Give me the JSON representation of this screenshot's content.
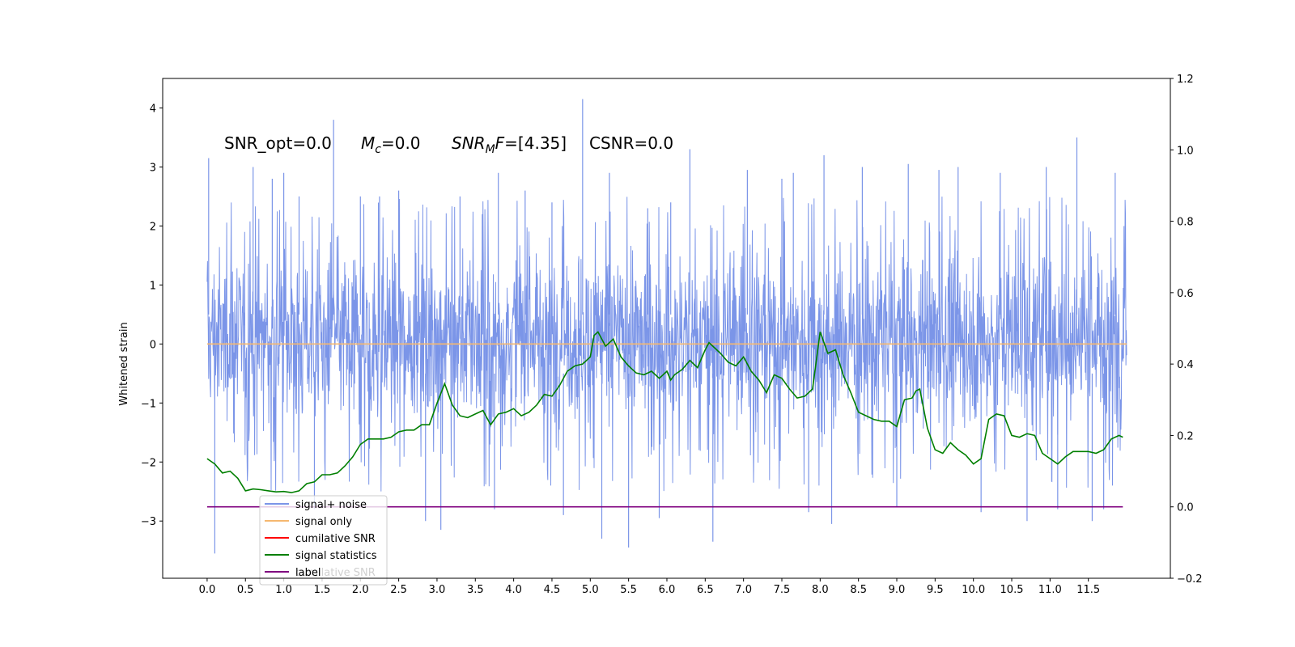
{
  "chart_data": {
    "type": "line",
    "title": "",
    "xlabel": "",
    "ylabel": "Whitened strain",
    "xlim": [
      -0.58,
      12.57
    ],
    "ylim": [
      -3.97,
      4.5
    ],
    "y2lim": [
      -0.2,
      1.2
    ],
    "grid": false,
    "legend_position": "lower-left",
    "x_ticks": [
      0.0,
      0.5,
      1.0,
      1.5,
      2.0,
      2.5,
      3.0,
      3.5,
      4.0,
      4.5,
      5.0,
      5.5,
      6.0,
      6.5,
      7.0,
      7.5,
      8.0,
      8.5,
      9.0,
      9.5,
      10.0,
      10.5,
      11.0,
      11.5
    ],
    "x_tick_labels": [
      "0.0",
      "0.5",
      "1.0",
      "1.5",
      "2.0",
      "2.5",
      "3.0",
      "3.5",
      "4.0",
      "4.5",
      "5.0",
      "5.5",
      "6.0",
      "6.5",
      "7.0",
      "7.5",
      "8.0",
      "8.5",
      "9.0",
      "9.5",
      "10.0",
      "10.5",
      "11.0",
      "11.5"
    ],
    "y_ticks": [
      -3,
      -2,
      -1,
      0,
      1,
      2,
      3,
      4
    ],
    "y_tick_labels": [
      "−3",
      "−2",
      "−1",
      "0",
      "1",
      "2",
      "3",
      "4"
    ],
    "y2_ticks": [
      -0.2,
      0.0,
      0.2,
      0.4,
      0.6,
      0.8,
      1.0,
      1.2
    ],
    "y2_tick_labels": [
      "−0.2",
      "0.0",
      "0.2",
      "0.4",
      "0.6",
      "0.8",
      "1.0",
      "1.2"
    ],
    "annotations": {
      "snr_opt": "SNR_opt=0.0",
      "mc_symbol": "M",
      "mc_sub": "c",
      "mc_value": "=0.0",
      "snrmf_snr": "SNR",
      "snrmf_sub": "M",
      "snrmf_f": "F",
      "snrmf_value": "=[4.35]",
      "csnr": "CSNR=0.0"
    },
    "series": [
      {
        "name": "signal+ noise",
        "color": "#7b95e8",
        "axis": "left",
        "kind": "dense-noise",
        "x_range": [
          0.0,
          12.0
        ],
        "typical_range": [
          -1.7,
          1.9
        ],
        "peaks": [
          {
            "x": 0.02,
            "y": 3.15
          },
          {
            "x": 0.1,
            "y": -3.55
          },
          {
            "x": 0.6,
            "y": 3.0
          },
          {
            "x": 0.85,
            "y": 2.8
          },
          {
            "x": 1.0,
            "y": 2.9
          },
          {
            "x": 1.2,
            "y": 2.5
          },
          {
            "x": 1.65,
            "y": 3.8
          },
          {
            "x": 1.4,
            "y": -2.8
          },
          {
            "x": 2.0,
            "y": 2.5
          },
          {
            "x": 2.25,
            "y": 2.5
          },
          {
            "x": 2.5,
            "y": 2.6
          },
          {
            "x": 2.85,
            "y": -3.0
          },
          {
            "x": 3.05,
            "y": -3.15
          },
          {
            "x": 3.3,
            "y": 2.5
          },
          {
            "x": 3.75,
            "y": -2.8
          },
          {
            "x": 3.8,
            "y": 2.9
          },
          {
            "x": 4.15,
            "y": 2.6
          },
          {
            "x": 4.5,
            "y": 2.4
          },
          {
            "x": 4.65,
            "y": -2.9
          },
          {
            "x": 4.9,
            "y": 4.15
          },
          {
            "x": 5.15,
            "y": -3.3
          },
          {
            "x": 5.25,
            "y": 2.9
          },
          {
            "x": 5.5,
            "y": -3.45
          },
          {
            "x": 5.75,
            "y": 2.3
          },
          {
            "x": 5.9,
            "y": -2.95
          },
          {
            "x": 6.05,
            "y": 2.4
          },
          {
            "x": 6.3,
            "y": 3.3
          },
          {
            "x": 6.6,
            "y": -3.35
          },
          {
            "x": 7.05,
            "y": 2.95
          },
          {
            "x": 7.5,
            "y": 2.8
          },
          {
            "x": 7.65,
            "y": 2.9
          },
          {
            "x": 7.85,
            "y": -2.85
          },
          {
            "x": 8.05,
            "y": 3.2
          },
          {
            "x": 8.15,
            "y": -3.05
          },
          {
            "x": 8.55,
            "y": 3.0
          },
          {
            "x": 9.0,
            "y": -2.75
          },
          {
            "x": 9.15,
            "y": 3.05
          },
          {
            "x": 9.55,
            "y": 2.95
          },
          {
            "x": 9.8,
            "y": 3.0
          },
          {
            "x": 10.1,
            "y": -2.85
          },
          {
            "x": 10.35,
            "y": 2.9
          },
          {
            "x": 10.7,
            "y": -3.0
          },
          {
            "x": 10.95,
            "y": 3.0
          },
          {
            "x": 11.1,
            "y": -2.8
          },
          {
            "x": 11.35,
            "y": 3.5
          },
          {
            "x": 11.55,
            "y": -3.0
          },
          {
            "x": 11.7,
            "y": -2.8
          },
          {
            "x": 11.85,
            "y": 2.9
          }
        ]
      },
      {
        "name": "signal only",
        "color": "#f5b870",
        "axis": "left",
        "x": [
          0.0,
          12.0
        ],
        "y": [
          0.0,
          0.0
        ]
      },
      {
        "name": "cumilative SNR",
        "color": "#ff0000",
        "axis": "right",
        "x": [],
        "y": []
      },
      {
        "name": "signal statistics",
        "color": "#007f00",
        "axis": "right",
        "x": [
          0.0,
          0.1,
          0.2,
          0.3,
          0.4,
          0.5,
          0.6,
          0.7,
          0.8,
          0.9,
          1.0,
          1.1,
          1.2,
          1.3,
          1.4,
          1.5,
          1.6,
          1.7,
          1.8,
          1.9,
          2.0,
          2.1,
          2.2,
          2.3,
          2.4,
          2.5,
          2.6,
          2.7,
          2.8,
          2.9,
          3.0,
          3.1,
          3.2,
          3.3,
          3.4,
          3.5,
          3.6,
          3.7,
          3.8,
          3.9,
          4.0,
          4.1,
          4.2,
          4.3,
          4.4,
          4.5,
          4.6,
          4.7,
          4.8,
          4.9,
          5.0,
          5.05,
          5.1,
          5.2,
          5.25,
          5.3,
          5.4,
          5.5,
          5.6,
          5.7,
          5.8,
          5.9,
          6.0,
          6.05,
          6.1,
          6.2,
          6.3,
          6.4,
          6.5,
          6.55,
          6.6,
          6.7,
          6.8,
          6.9,
          7.0,
          7.1,
          7.2,
          7.3,
          7.4,
          7.5,
          7.6,
          7.7,
          7.8,
          7.9,
          8.0,
          8.1,
          8.2,
          8.3,
          8.4,
          8.5,
          8.6,
          8.7,
          8.8,
          8.9,
          9.0,
          9.1,
          9.2,
          9.25,
          9.3,
          9.4,
          9.5,
          9.6,
          9.7,
          9.8,
          9.9,
          10.0,
          10.1,
          10.2,
          10.3,
          10.4,
          10.5,
          10.6,
          10.7,
          10.8,
          10.9,
          11.0,
          11.1,
          11.2,
          11.3,
          11.4,
          11.5,
          11.6,
          11.7,
          11.8,
          11.9,
          11.95
        ],
        "y": [
          0.135,
          0.12,
          0.095,
          0.1,
          0.08,
          0.045,
          0.05,
          0.048,
          0.045,
          0.042,
          0.043,
          0.04,
          0.045,
          0.065,
          0.07,
          0.09,
          0.09,
          0.095,
          0.115,
          0.14,
          0.175,
          0.19,
          0.19,
          0.19,
          0.195,
          0.21,
          0.215,
          0.215,
          0.23,
          0.23,
          0.29,
          0.345,
          0.285,
          0.255,
          0.25,
          0.26,
          0.27,
          0.23,
          0.26,
          0.265,
          0.275,
          0.255,
          0.265,
          0.285,
          0.315,
          0.31,
          0.34,
          0.38,
          0.395,
          0.4,
          0.42,
          0.48,
          0.49,
          0.45,
          0.46,
          0.47,
          0.42,
          0.395,
          0.375,
          0.37,
          0.38,
          0.36,
          0.38,
          0.355,
          0.37,
          0.385,
          0.41,
          0.39,
          0.44,
          0.46,
          0.45,
          0.43,
          0.405,
          0.395,
          0.42,
          0.38,
          0.355,
          0.32,
          0.37,
          0.36,
          0.33,
          0.305,
          0.31,
          0.33,
          0.49,
          0.43,
          0.44,
          0.37,
          0.32,
          0.265,
          0.255,
          0.245,
          0.24,
          0.24,
          0.225,
          0.3,
          0.305,
          0.325,
          0.33,
          0.22,
          0.16,
          0.15,
          0.18,
          0.16,
          0.145,
          0.12,
          0.135,
          0.245,
          0.26,
          0.255,
          0.2,
          0.195,
          0.205,
          0.2,
          0.15,
          0.135,
          0.12,
          0.14,
          0.155,
          0.155,
          0.155,
          0.15,
          0.16,
          0.19,
          0.2,
          0.195
        ]
      },
      {
        "name": "label",
        "color": "#7f007f",
        "axis": "right",
        "x": [
          0.0,
          11.95
        ],
        "y": [
          0.0,
          0.0
        ]
      }
    ],
    "legend": [
      {
        "label": "signal+ noise",
        "color": "#7b95e8"
      },
      {
        "label": "signal only",
        "color": "#f5b870"
      },
      {
        "label": "cumilative SNR",
        "color": "#ff0000"
      },
      {
        "label": "signal statistics",
        "color": "#007f00"
      },
      {
        "label": "label",
        "color": "#7f007f"
      }
    ],
    "hidden_text": "cumilative SNR"
  }
}
